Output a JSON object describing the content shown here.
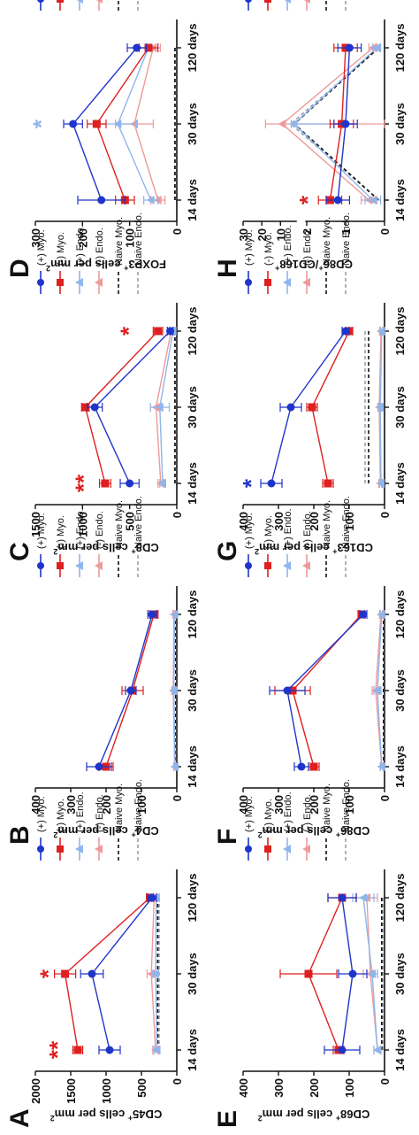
{
  "colors": {
    "pos_myo": "#1f35c9",
    "neg_myo": "#de2020",
    "pos_endo": "#8fb6ec",
    "neg_endo": "#ef9a9a",
    "naive_myo": "#111111",
    "naive_endo": "#9aa0a8",
    "axis": "#111111"
  },
  "chart_data": [
    {
      "panel": "A",
      "type": "line",
      "ylabel_parts": [
        "CD45",
        "+",
        " cells per mm",
        "2"
      ],
      "categories": [
        "14 days",
        "30 days",
        "120 days"
      ],
      "ylim": [
        0,
        2000
      ],
      "yticks": [
        0,
        500,
        1000,
        1500,
        2000
      ],
      "series": [
        {
          "name": "(+) Myo.",
          "values": [
            950,
            1200,
            350
          ],
          "err": [
            150,
            160,
            60
          ]
        },
        {
          "name": "(-) Myo.",
          "values": [
            1400,
            1580,
            380
          ],
          "err": [
            70,
            150,
            50
          ]
        },
        {
          "name": "(+) Endo.",
          "values": [
            280,
            300,
            290
          ],
          "err": [
            40,
            40,
            40
          ]
        },
        {
          "name": "(-) Endo.",
          "values": [
            300,
            360,
            320
          ],
          "err": [
            40,
            60,
            40
          ]
        },
        {
          "name": "Naive Myo.",
          "values": [
            270,
            270,
            270
          ],
          "err": [
            0,
            0,
            0
          ]
        },
        {
          "name": "Naive Endo.",
          "values": [
            250,
            250,
            250
          ],
          "err": [
            0,
            0,
            0
          ]
        }
      ],
      "annotations": [
        {
          "text": "**",
          "cat": 0,
          "y": 1700,
          "series": 1
        },
        {
          "text": "*",
          "cat": 1,
          "y": 1830,
          "series": 1
        }
      ]
    },
    {
      "panel": "B",
      "type": "line",
      "ylabel_parts": [
        "CD4",
        "+",
        " cells per mm",
        "2"
      ],
      "categories": [
        "14 days",
        "30 days",
        "120 days"
      ],
      "ylim": [
        0,
        400
      ],
      "yticks": [
        0,
        100,
        200,
        300,
        400
      ],
      "series": [
        {
          "name": "(+) Myo.",
          "values": [
            220,
            130,
            70
          ],
          "err": [
            35,
            15,
            12
          ]
        },
        {
          "name": "(-) Myo.",
          "values": [
            200,
            125,
            65
          ],
          "err": [
            20,
            30,
            12
          ]
        },
        {
          "name": "(+) Endo.",
          "values": [
            5,
            8,
            6
          ],
          "err": [
            3,
            3,
            3
          ]
        },
        {
          "name": "(-) Endo.",
          "values": [
            6,
            10,
            8
          ],
          "err": [
            3,
            4,
            3
          ]
        },
        {
          "name": "Naive Myo.",
          "values": [
            3,
            3,
            3
          ],
          "err": [
            0,
            0,
            0
          ]
        },
        {
          "name": "Naive Endo.",
          "values": [
            2,
            2,
            2
          ],
          "err": [
            0,
            0,
            0
          ]
        }
      ],
      "annotations": []
    },
    {
      "panel": "C",
      "type": "line",
      "ylabel_parts": [
        "CD8",
        "+",
        " cells per mm",
        "2"
      ],
      "categories": [
        "14 days",
        "30 days",
        "120 days"
      ],
      "ylim": [
        0,
        1500
      ],
      "yticks": [
        0,
        500,
        1000,
        1500
      ],
      "series": [
        {
          "name": "(+) Myo.",
          "values": [
            500,
            870,
            70
          ],
          "err": [
            100,
            80,
            30
          ]
        },
        {
          "name": "(-) Myo.",
          "values": [
            760,
            970,
            200
          ],
          "err": [
            60,
            40,
            50
          ]
        },
        {
          "name": "(+) Endo.",
          "values": [
            150,
            180,
            40
          ],
          "err": [
            30,
            100,
            20
          ]
        },
        {
          "name": "(-) Endo.",
          "values": [
            170,
            220,
            60
          ],
          "err": [
            30,
            60,
            20
          ]
        },
        {
          "name": "Naive Myo.",
          "values": [
            20,
            20,
            20
          ],
          "err": [
            0,
            0,
            0
          ]
        },
        {
          "name": "Naive Endo.",
          "values": [
            15,
            15,
            15
          ],
          "err": [
            0,
            0,
            0
          ]
        }
      ],
      "annotations": [
        {
          "text": "**",
          "cat": 0,
          "y": 1000,
          "series": 1
        },
        {
          "text": "*",
          "cat": 2,
          "y": 520,
          "series": 1
        }
      ]
    },
    {
      "panel": "D",
      "type": "line",
      "ylabel_parts": [
        "FOXP3",
        "+",
        " cells per mm",
        "2"
      ],
      "categories": [
        "14 days",
        "30 days",
        "120 days"
      ],
      "ylim": [
        0,
        300
      ],
      "yticks": [
        0,
        100,
        200,
        300
      ],
      "series": [
        {
          "name": "(+) Myo.",
          "values": [
            160,
            220,
            85
          ],
          "err": [
            50,
            20,
            20
          ]
        },
        {
          "name": "(-) Myo.",
          "values": [
            110,
            170,
            60
          ],
          "err": [
            20,
            20,
            20
          ]
        },
        {
          "name": "(+) Endo.",
          "values": [
            55,
            125,
            60
          ],
          "err": [
            15,
            40,
            20
          ]
        },
        {
          "name": "(-) Endo.",
          "values": [
            40,
            90,
            50
          ],
          "err": [
            15,
            40,
            15
          ]
        },
        {
          "name": "Naive Myo.",
          "values": [
            4,
            4,
            4
          ],
          "err": [
            0,
            0,
            0
          ]
        },
        {
          "name": "Naive Endo.",
          "values": [
            3,
            3,
            3
          ],
          "err": [
            0,
            0,
            0
          ]
        }
      ],
      "annotations": [
        {
          "text": "*",
          "cat": 1,
          "y": 290,
          "series": 2
        }
      ]
    },
    {
      "panel": "E",
      "type": "line",
      "ylabel_parts": [
        "CD68",
        "+",
        " cells per mm",
        "2"
      ],
      "categories": [
        "14 days",
        "30 days",
        "120 days"
      ],
      "ylim": [
        0,
        400
      ],
      "yticks": [
        0,
        100,
        200,
        300,
        400
      ],
      "series": [
        {
          "name": "(+) Myo.",
          "values": [
            120,
            90,
            120
          ],
          "err": [
            50,
            40,
            40
          ]
        },
        {
          "name": "(-) Myo.",
          "values": [
            130,
            215,
            120
          ],
          "err": [
            15,
            80,
            40
          ]
        },
        {
          "name": "(+) Endo.",
          "values": [
            20,
            35,
            60
          ],
          "err": [
            10,
            15,
            30
          ]
        },
        {
          "name": "(-) Endo.",
          "values": [
            20,
            40,
            50
          ],
          "err": [
            10,
            20,
            30
          ]
        },
        {
          "name": "Naive Myo.",
          "values": [
            8,
            8,
            8
          ],
          "err": [
            0,
            0,
            0
          ]
        },
        {
          "name": "Naive Endo.",
          "values": [
            5,
            5,
            5
          ],
          "err": [
            0,
            0,
            0
          ]
        }
      ],
      "annotations": []
    },
    {
      "panel": "F",
      "type": "line",
      "ylabel_parts": [
        "CD86",
        "+",
        " cells per mm",
        "2"
      ],
      "categories": [
        "14 days",
        "30 days",
        "120 days"
      ],
      "ylim": [
        0,
        400
      ],
      "yticks": [
        0,
        100,
        200,
        300,
        400
      ],
      "series": [
        {
          "name": "(+) Myo.",
          "values": [
            235,
            275,
            60
          ],
          "err": [
            20,
            50,
            10
          ]
        },
        {
          "name": "(-) Myo.",
          "values": [
            200,
            260,
            65
          ],
          "err": [
            15,
            50,
            10
          ]
        },
        {
          "name": "(+) Endo.",
          "values": [
            8,
            20,
            8
          ],
          "err": [
            4,
            10,
            4
          ]
        },
        {
          "name": "(-) Endo.",
          "values": [
            8,
            25,
            10
          ],
          "err": [
            4,
            10,
            4
          ]
        },
        {
          "name": "Naive Myo.",
          "values": [
            3,
            3,
            3
          ],
          "err": [
            0,
            0,
            0
          ]
        },
        {
          "name": "Naive Endo.",
          "values": [
            2,
            2,
            2
          ],
          "err": [
            0,
            0,
            0
          ]
        }
      ],
      "annotations": []
    },
    {
      "panel": "G",
      "type": "line",
      "ylabel_parts": [
        "CD163",
        "+",
        " cells per mm",
        "2"
      ],
      "categories": [
        "14 days",
        "30 days",
        "120 days"
      ],
      "ylim": [
        0,
        400
      ],
      "yticks": [
        0,
        100,
        200,
        300,
        400
      ],
      "series": [
        {
          "name": "(+) Myo.",
          "values": [
            320,
            265,
            110
          ],
          "err": [
            30,
            30,
            10
          ]
        },
        {
          "name": "(-) Myo.",
          "values": [
            160,
            205,
            100
          ],
          "err": [
            15,
            15,
            10
          ]
        },
        {
          "name": "(+) Endo.",
          "values": [
            10,
            12,
            8
          ],
          "err": [
            4,
            4,
            4
          ]
        },
        {
          "name": "(-) Endo.",
          "values": [
            12,
            15,
            10
          ],
          "err": [
            4,
            4,
            4
          ]
        },
        {
          "name": "Naive Myo.",
          "values": [
            45,
            45,
            45
          ],
          "err": [
            0,
            0,
            0
          ]
        },
        {
          "name": "Naive Endo.",
          "values": [
            55,
            55,
            55
          ],
          "err": [
            0,
            0,
            0
          ]
        }
      ],
      "annotations": [
        {
          "text": "*",
          "cat": 0,
          "y": 380,
          "series": 0
        }
      ]
    },
    {
      "panel": "H",
      "type": "line",
      "ylabel_parts": [
        "CD86",
        "+",
        "/CD168",
        "+"
      ],
      "categories": [
        "14 days",
        "30 days",
        "120 days"
      ],
      "yscale": "broken",
      "yticks": [
        0,
        1,
        2,
        10,
        20,
        30
      ],
      "series": [
        {
          "name": "(+) Myo.",
          "values": [
            1.2,
            1.0,
            0.9
          ],
          "err": [
            0.3,
            0.3,
            0.3
          ]
        },
        {
          "name": "(-) Myo.",
          "values": [
            1.4,
            1.1,
            1.0
          ],
          "err": [
            0.3,
            0.3,
            0.3
          ]
        },
        {
          "name": "(+) Endo.",
          "values": [
            0.3,
            2.8,
            0.2
          ],
          "err": [
            0.2,
            1.5,
            0.1
          ]
        },
        {
          "name": "(-) Endo.",
          "values": [
            0.4,
            9,
            0.3
          ],
          "err": [
            0.2,
            9,
            0.1
          ]
        },
        {
          "name": "Naive Myo.",
          "values": [
            0.15,
            2.6,
            0.15
          ],
          "err": [
            0,
            0,
            0
          ]
        },
        {
          "name": "Naive Endo.",
          "values": [
            0.15,
            4.5,
            0.15
          ],
          "err": [
            0,
            0,
            0
          ]
        }
      ],
      "annotations": [
        {
          "text": "*",
          "cat": 0,
          "y": 2.0,
          "series": 1
        }
      ]
    }
  ]
}
